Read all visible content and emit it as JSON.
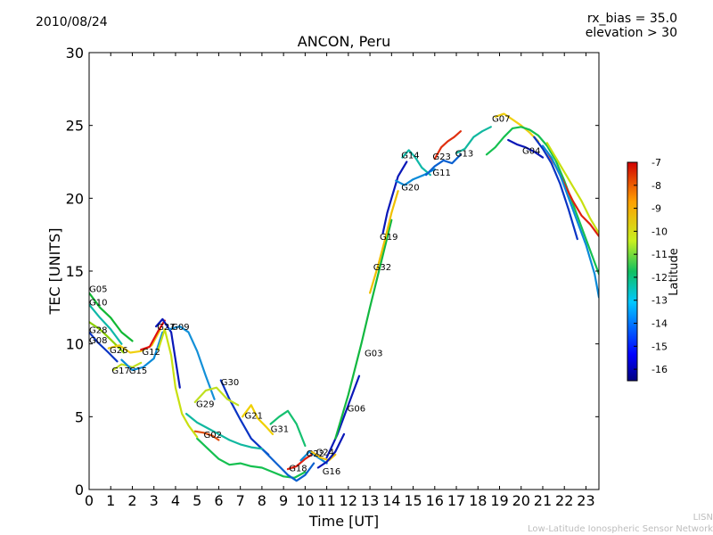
{
  "header": {
    "date": "2010/08/24",
    "rx_bias": "rx_bias = 35.0",
    "elevation": "elevation > 30"
  },
  "footer": {
    "line1": "LISN",
    "line2": "Low-Latitude Ionospheric Sensor Network"
  },
  "chart_data": {
    "type": "line",
    "title": "ANCON, Peru",
    "xlabel": "Time [UT]",
    "ylabel": "TEC [UNITS]",
    "xlim": [
      0,
      23.6
    ],
    "ylim": [
      0,
      30
    ],
    "xticks": [
      "0",
      "1",
      "2",
      "3",
      "4",
      "5",
      "6",
      "7",
      "8",
      "9",
      "10",
      "11",
      "12",
      "13",
      "14",
      "15",
      "16",
      "17",
      "18",
      "19",
      "20",
      "21",
      "22",
      "23"
    ],
    "yticks": [
      "0",
      "5",
      "10",
      "15",
      "20",
      "25",
      "30"
    ],
    "colorbar": {
      "label": "Latitude",
      "min": -16.5,
      "max": -7,
      "ticks": [
        "-7",
        "-8",
        "-9",
        "-10",
        "-11",
        "-12",
        "-13",
        "-14",
        "-15",
        "-16"
      ]
    },
    "series": [
      {
        "name": "G05",
        "label_x": 0.0,
        "label_y": 13.8,
        "color": "#11b833",
        "x": [
          0,
          0.5,
          1.0,
          1.5,
          2.0
        ],
        "y": [
          13.5,
          12.5,
          11.8,
          10.8,
          10.2
        ]
      },
      {
        "name": "G10",
        "label_x": 0.0,
        "label_y": 12.9,
        "color": "#0fb8a8",
        "x": [
          0,
          0.5,
          1.0,
          1.5
        ],
        "y": [
          12.7,
          11.8,
          11.0,
          10.0
        ]
      },
      {
        "name": "G28",
        "label_x": 0.0,
        "label_y": 11.0,
        "color": "#8cd000",
        "x": [
          0,
          0.5,
          1.0,
          1.6
        ],
        "y": [
          11.5,
          11.0,
          10.3,
          9.4
        ]
      },
      {
        "name": "G08",
        "label_x": 0.0,
        "label_y": 10.3,
        "color": "#0a34c4",
        "x": [
          0,
          0.4,
          0.9,
          1.3
        ],
        "y": [
          10.8,
          10.1,
          9.4,
          8.8
        ]
      },
      {
        "name": "G26",
        "label_x": 0.95,
        "label_y": 9.6,
        "color": "#f0d010",
        "x": [
          0.9,
          1.4,
          1.9,
          2.4,
          2.9,
          3.3
        ],
        "y": [
          9.7,
          9.9,
          9.4,
          9.5,
          9.9,
          11.0
        ]
      },
      {
        "name": "G17",
        "label_x": 1.05,
        "label_y": 8.2,
        "color": "#bfe020",
        "x": [
          1.1,
          1.5,
          2.0,
          2.4
        ],
        "y": [
          8.2,
          8.6,
          8.4,
          8.7
        ]
      },
      {
        "name": "G15",
        "label_x": 1.85,
        "label_y": 8.2,
        "color": "#0a8ad8",
        "x": [
          1.5,
          2.0,
          2.5,
          3.0,
          3.4
        ],
        "y": [
          8.9,
          8.2,
          8.4,
          9.0,
          10.8
        ]
      },
      {
        "name": "G12",
        "label_x": 2.45,
        "label_y": 9.5,
        "color": "#e01010",
        "x": [
          2.4,
          2.8,
          3.2,
          3.5
        ],
        "y": [
          9.6,
          9.8,
          10.9,
          11.6
        ]
      },
      {
        "name": "G27",
        "label_x": 3.15,
        "label_y": 11.2,
        "color": "#0a18b8",
        "x": [
          3.1,
          3.4,
          3.8,
          4.2
        ],
        "y": [
          11.2,
          11.7,
          10.8,
          7.0
        ]
      },
      {
        "name": "G09",
        "label_x": 3.8,
        "label_y": 11.2,
        "color": "#1390d8",
        "x": [
          3.7,
          4.2,
          4.6,
          5.0,
          5.4,
          5.8
        ],
        "y": [
          11.0,
          11.2,
          10.8,
          9.5,
          7.8,
          6.2
        ]
      },
      {
        "name": "G30",
        "label_x": 6.1,
        "label_y": 7.4,
        "color": "#0a34c4",
        "x": [
          6.1,
          6.5,
          7.0,
          7.5,
          8.0,
          8.3
        ],
        "y": [
          7.5,
          6.2,
          4.8,
          3.5,
          2.8,
          2.4
        ]
      },
      {
        "name": "G29",
        "label_x": 4.95,
        "label_y": 5.9,
        "color": "#c0e020",
        "x": [
          4.9,
          5.4,
          5.9,
          6.4,
          6.9
        ],
        "y": [
          6.0,
          6.8,
          7.0,
          6.2,
          5.8
        ]
      },
      {
        "name": "G02",
        "label_x": 5.3,
        "label_y": 3.8,
        "color": "#e05010",
        "x": [
          4.9,
          5.3,
          5.7,
          6.0
        ],
        "y": [
          4.0,
          3.9,
          3.7,
          3.4
        ]
      },
      {
        "name": "G21",
        "label_x": 7.2,
        "label_y": 5.1,
        "color": "#f0d000",
        "x": [
          7.1,
          7.5,
          7.8,
          8.2,
          8.5
        ],
        "y": [
          5.0,
          5.8,
          4.9,
          4.3,
          3.8
        ]
      },
      {
        "name": "G31",
        "label_x": 8.4,
        "label_y": 4.2,
        "color": "#15c070",
        "x": [
          8.4,
          8.8,
          9.2,
          9.6,
          10.0
        ],
        "y": [
          4.5,
          5.0,
          5.4,
          4.5,
          3.0
        ]
      },
      {
        "name": "G18",
        "label_x": 9.25,
        "label_y": 1.5,
        "color": "#e02010",
        "x": [
          9.2,
          9.6,
          10.0,
          10.4
        ],
        "y": [
          1.4,
          1.6,
          2.1,
          2.5
        ]
      },
      {
        "name": "G22",
        "label_x": 10.05,
        "label_y": 2.5,
        "color": "#0a8ad8",
        "x": [
          9.8,
          10.2,
          10.6,
          11.0
        ],
        "y": [
          2.0,
          2.6,
          2.2,
          1.8
        ]
      },
      {
        "name": "G24",
        "label_x": 10.5,
        "label_y": 2.6,
        "color": "#f0c010",
        "x": [
          10.3,
          10.7,
          11.1,
          11.4
        ],
        "y": [
          2.6,
          2.2,
          2.0,
          2.4
        ]
      },
      {
        "name": "G16",
        "label_x": 10.8,
        "label_y": 1.3,
        "color": "#0a18b8",
        "x": [
          10.6,
          11.0,
          11.4,
          11.8
        ],
        "y": [
          1.5,
          1.9,
          2.6,
          3.8
        ]
      },
      {
        "name": "G06",
        "label_x": 11.95,
        "label_y": 5.6,
        "color": "#0a18b8",
        "x": [
          11.0,
          11.5,
          12.0,
          12.5
        ],
        "y": [
          2.2,
          3.8,
          5.8,
          7.8
        ]
      },
      {
        "name": "G03",
        "label_x": 12.75,
        "label_y": 9.4,
        "color": "#12b840",
        "x": [
          11.4,
          12.0,
          12.6,
          13.0,
          13.5,
          14.0
        ],
        "y": [
          3.5,
          6.5,
          10.0,
          12.5,
          15.5,
          18.5
        ]
      },
      {
        "name": "G32",
        "label_x": 13.15,
        "label_y": 15.3,
        "color": "#f0c000",
        "x": [
          13.0,
          13.4,
          13.7,
          14.0,
          14.3
        ],
        "y": [
          13.5,
          15.5,
          17.2,
          19.0,
          20.5
        ]
      },
      {
        "name": "G19",
        "label_x": 13.45,
        "label_y": 17.4,
        "color": "#0a18b8",
        "x": [
          13.6,
          13.8,
          14.0,
          14.3,
          14.7
        ],
        "y": [
          17.6,
          19.0,
          20.0,
          21.5,
          22.5
        ]
      },
      {
        "name": "G20",
        "label_x": 14.45,
        "label_y": 20.8,
        "color": "#0a8ad8",
        "x": [
          14.2,
          14.6,
          15.0,
          15.5,
          16.0
        ],
        "y": [
          21.2,
          20.9,
          21.3,
          21.6,
          22.0
        ]
      },
      {
        "name": "G14",
        "label_x": 14.45,
        "label_y": 23.0,
        "color": "#0fb8a8",
        "x": [
          14.5,
          14.8,
          15.1,
          15.4,
          15.8
        ],
        "y": [
          22.8,
          23.3,
          22.8,
          22.1,
          21.6
        ]
      },
      {
        "name": "G23",
        "label_x": 15.9,
        "label_y": 22.9,
        "color": "#e03010",
        "x": [
          16.0,
          16.3,
          16.6,
          16.9,
          17.2
        ],
        "y": [
          22.7,
          23.5,
          23.9,
          24.2,
          24.6
        ]
      },
      {
        "name": "G11",
        "label_x": 15.9,
        "label_y": 21.8,
        "color": "#0a60d0",
        "x": [
          15.6,
          16.0,
          16.4,
          16.8,
          17.2
        ],
        "y": [
          21.6,
          22.2,
          22.6,
          22.4,
          23.0
        ]
      },
      {
        "name": "G13",
        "label_x": 16.95,
        "label_y": 23.1,
        "color": "#11b8a0",
        "x": [
          17.0,
          17.4,
          17.8,
          18.2,
          18.6
        ],
        "y": [
          23.1,
          23.4,
          24.2,
          24.6,
          24.9
        ]
      },
      {
        "name": "G07",
        "label_x": 18.65,
        "label_y": 25.5,
        "color": "#f0d010",
        "x": [
          18.8,
          19.2,
          19.6,
          20.0,
          20.4,
          20.8
        ],
        "y": [
          25.6,
          25.8,
          25.4,
          25.0,
          24.5,
          23.9
        ]
      },
      {
        "name": "G04",
        "label_x": 20.05,
        "label_y": 23.3,
        "color": "#0a18b8",
        "x": [
          19.4,
          19.8,
          20.2,
          20.6,
          21.0
        ],
        "y": [
          24.0,
          23.7,
          23.5,
          23.2,
          22.8
        ]
      },
      {
        "name": "",
        "label_x": 0,
        "label_y": 0,
        "color": "#15c050",
        "x": [
          18.4,
          18.8,
          19.2,
          19.6,
          20.0,
          20.4,
          20.8,
          21.2,
          21.6,
          22.0,
          22.4,
          22.8,
          23.2,
          23.6
        ],
        "y": [
          23.0,
          23.5,
          24.2,
          24.8,
          24.9,
          24.7,
          24.3,
          23.6,
          22.6,
          21.2,
          19.6,
          18.0,
          16.4,
          14.8
        ]
      },
      {
        "name": "",
        "label_x": 0,
        "label_y": 0,
        "color": "#e02010",
        "x": [
          21.2,
          21.6,
          22.0,
          22.4,
          22.8,
          23.2,
          23.6
        ],
        "y": [
          23.2,
          22.2,
          21.0,
          19.8,
          18.8,
          18.2,
          17.4
        ]
      },
      {
        "name": "",
        "label_x": 0,
        "label_y": 0,
        "color": "#0a34c4",
        "x": [
          20.6,
          21.0,
          21.4,
          21.8,
          22.2,
          22.6
        ],
        "y": [
          24.2,
          23.4,
          22.4,
          21.0,
          19.2,
          17.2
        ]
      },
      {
        "name": "",
        "label_x": 0,
        "label_y": 0,
        "color": "#0a8ad8",
        "x": [
          21.0,
          21.4,
          21.8,
          22.2,
          22.6,
          23.0,
          23.4,
          23.6
        ],
        "y": [
          23.6,
          22.8,
          21.6,
          20.0,
          18.4,
          16.8,
          14.8,
          13.2
        ]
      },
      {
        "name": "",
        "label_x": 0,
        "label_y": 0,
        "color": "#c8e010",
        "x": [
          21.2,
          21.6,
          22.0,
          22.4,
          22.8,
          23.2,
          23.6
        ],
        "y": [
          23.8,
          22.8,
          21.8,
          20.8,
          19.8,
          18.6,
          17.6
        ]
      },
      {
        "name": "",
        "label_x": 0,
        "label_y": 0,
        "color": "#15c050",
        "x": [
          5.0,
          5.5,
          6.0,
          6.5,
          7.0,
          7.5,
          8.0,
          8.5,
          9.0,
          9.5,
          10.0
        ],
        "y": [
          3.5,
          2.8,
          2.1,
          1.7,
          1.8,
          1.6,
          1.5,
          1.2,
          0.9,
          0.8,
          1.2
        ]
      },
      {
        "name": "",
        "label_x": 0,
        "label_y": 0,
        "color": "#0a60d0",
        "x": [
          8.0,
          8.4,
          8.8,
          9.2,
          9.6,
          10.0,
          10.4
        ],
        "y": [
          2.8,
          2.2,
          1.6,
          1.0,
          0.6,
          1.0,
          1.8
        ]
      },
      {
        "name": "",
        "label_x": 0,
        "label_y": 0,
        "color": "#c8e010",
        "x": [
          3.2,
          3.5,
          3.8,
          4.0,
          4.3,
          4.6,
          5.0
        ],
        "y": [
          9.6,
          11.0,
          9.2,
          7.0,
          5.2,
          4.4,
          3.6
        ]
      },
      {
        "name": "",
        "label_x": 0,
        "label_y": 0,
        "color": "#11b8a0",
        "x": [
          4.5,
          5.0,
          5.5,
          6.0,
          6.5,
          7.0,
          7.5,
          8.0
        ],
        "y": [
          5.2,
          4.6,
          4.2,
          3.8,
          3.4,
          3.1,
          2.9,
          2.8
        ]
      }
    ]
  }
}
